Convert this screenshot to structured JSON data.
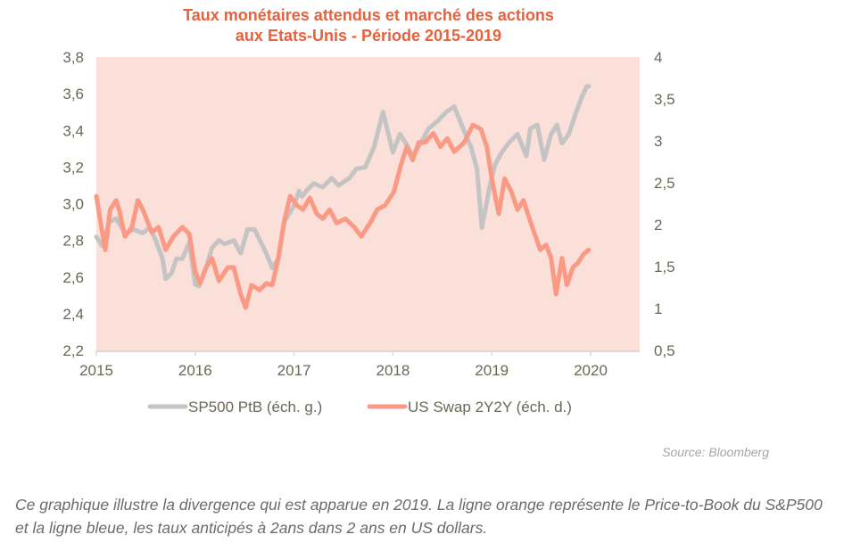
{
  "chart_data": {
    "type": "line",
    "title": "Taux monétaires attendus et marché des actions aux Etats-Unis - Période 2015-2019",
    "title_lines": [
      "Taux monétaires attendus et marché des actions",
      "aux Etats-Unis - Période 2015-2019"
    ],
    "xlabel": "",
    "ylabel_left": "",
    "ylabel_right": "",
    "xlim": [
      2015,
      2020.5
    ],
    "ylim_left": [
      2.2,
      3.8
    ],
    "ylim_right": [
      0.5,
      4.0
    ],
    "x_ticks": [
      "2015",
      "2016",
      "2017",
      "2018",
      "2019",
      "2020"
    ],
    "x_tick_values": [
      2015,
      2016,
      2017,
      2018,
      2019,
      2020
    ],
    "y_left_ticks": [
      "2,2",
      "2,4",
      "2,6",
      "2,8",
      "3,0",
      "3,2",
      "3,4",
      "3,6",
      "3,8"
    ],
    "y_left_tick_values": [
      2.2,
      2.4,
      2.6,
      2.8,
      3.0,
      3.2,
      3.4,
      3.6,
      3.8
    ],
    "y_right_ticks": [
      "0,5",
      "1",
      "1,5",
      "2",
      "2,5",
      "3",
      "3,5",
      "4"
    ],
    "y_right_tick_values": [
      0.5,
      1.0,
      1.5,
      2.0,
      2.5,
      3.0,
      3.5,
      4.0
    ],
    "grid": false,
    "legend_position": "bottom",
    "plot_background": "#fbdfd9",
    "series": [
      {
        "name": "SP500 PtB (éch. g.)",
        "axis": "left",
        "color": "#c4c4c4",
        "x": [
          2015.0,
          2015.06,
          2015.13,
          2015.2,
          2015.29,
          2015.38,
          2015.47,
          2015.54,
          2015.6,
          2015.67,
          2015.7,
          2015.76,
          2015.81,
          2015.87,
          2015.94,
          2016.0,
          2016.04,
          2016.11,
          2016.17,
          2016.24,
          2016.3,
          2016.39,
          2016.46,
          2016.53,
          2016.6,
          2016.71,
          2016.78,
          2016.84,
          2016.9,
          2017.0,
          2017.05,
          2017.08,
          2017.14,
          2017.2,
          2017.29,
          2017.38,
          2017.45,
          2017.56,
          2017.63,
          2017.72,
          2017.81,
          2017.9,
          2018.0,
          2018.07,
          2018.13,
          2018.2,
          2018.27,
          2018.36,
          2018.45,
          2018.54,
          2018.62,
          2018.71,
          2018.79,
          2018.85,
          2018.9,
          2018.97,
          2019.03,
          2019.1,
          2019.17,
          2019.26,
          2019.35,
          2019.39,
          2019.46,
          2019.53,
          2019.6,
          2019.66,
          2019.71,
          2019.78,
          2019.84,
          2019.91,
          2019.96,
          2019.98
        ],
        "values": [
          2.82,
          2.77,
          2.9,
          2.92,
          2.84,
          2.86,
          2.84,
          2.87,
          2.8,
          2.7,
          2.59,
          2.62,
          2.7,
          2.7,
          2.79,
          2.56,
          2.55,
          2.65,
          2.76,
          2.8,
          2.78,
          2.8,
          2.73,
          2.86,
          2.86,
          2.74,
          2.65,
          2.7,
          2.9,
          2.99,
          3.07,
          3.04,
          3.08,
          3.11,
          3.09,
          3.14,
          3.1,
          3.14,
          3.19,
          3.2,
          3.31,
          3.5,
          3.28,
          3.38,
          3.33,
          3.26,
          3.32,
          3.41,
          3.45,
          3.5,
          3.53,
          3.41,
          3.31,
          3.19,
          2.87,
          3.07,
          3.21,
          3.28,
          3.33,
          3.38,
          3.26,
          3.41,
          3.43,
          3.24,
          3.38,
          3.43,
          3.33,
          3.38,
          3.48,
          3.58,
          3.64,
          3.64
        ]
      },
      {
        "name": "US Swap 2Y2Y (éch. d.)",
        "axis": "right",
        "color": "#fa9a85",
        "x": [
          2015.0,
          2015.06,
          2015.09,
          2015.14,
          2015.2,
          2015.23,
          2015.29,
          2015.36,
          2015.42,
          2015.47,
          2015.56,
          2015.63,
          2015.7,
          2015.78,
          2015.87,
          2015.94,
          2016.0,
          2016.05,
          2016.11,
          2016.17,
          2016.24,
          2016.33,
          2016.39,
          2016.46,
          2016.51,
          2016.57,
          2016.65,
          2016.72,
          2016.78,
          2016.84,
          2016.9,
          2016.96,
          2017.03,
          2017.09,
          2017.16,
          2017.23,
          2017.29,
          2017.36,
          2017.43,
          2017.52,
          2017.61,
          2017.68,
          2017.78,
          2017.84,
          2017.92,
          2018.01,
          2018.08,
          2018.14,
          2018.2,
          2018.26,
          2018.32,
          2018.41,
          2018.48,
          2018.55,
          2018.62,
          2018.72,
          2018.81,
          2018.89,
          2018.95,
          2019.0,
          2019.07,
          2019.13,
          2019.2,
          2019.26,
          2019.32,
          2019.41,
          2019.49,
          2019.55,
          2019.6,
          2019.65,
          2019.71,
          2019.76,
          2019.82,
          2019.87,
          2019.93,
          2019.98
        ],
        "values": [
          2.34,
          1.91,
          1.7,
          2.18,
          2.29,
          2.18,
          1.86,
          1.97,
          2.29,
          2.18,
          1.91,
          1.97,
          1.7,
          1.86,
          1.97,
          1.89,
          1.44,
          1.3,
          1.49,
          1.6,
          1.33,
          1.49,
          1.49,
          1.17,
          1.01,
          1.28,
          1.22,
          1.3,
          1.28,
          1.6,
          2.04,
          2.34,
          2.23,
          2.18,
          2.32,
          2.13,
          2.07,
          2.18,
          2.02,
          2.07,
          1.97,
          1.86,
          2.04,
          2.18,
          2.23,
          2.39,
          2.71,
          2.93,
          2.77,
          2.98,
          2.98,
          3.09,
          2.93,
          3.03,
          2.87,
          2.98,
          3.19,
          3.14,
          2.93,
          2.55,
          2.13,
          2.55,
          2.39,
          2.18,
          2.29,
          1.97,
          1.7,
          1.76,
          1.6,
          1.17,
          1.6,
          1.28,
          1.49,
          1.54,
          1.65,
          1.7
        ]
      }
    ]
  },
  "source": "Source: Bloomberg",
  "caption": "Ce graphique illustre la divergence qui est apparue en 2019. La ligne orange représente le Price-to-Book du S&P500 et la ligne bleue, les taux anticipés à 2ans dans 2 ans en US dollars.",
  "colors": {
    "title": "#e8603c",
    "axis_text": "#6b6757",
    "source_text": "#a6a6a6",
    "caption_text": "#6b6b6b"
  }
}
